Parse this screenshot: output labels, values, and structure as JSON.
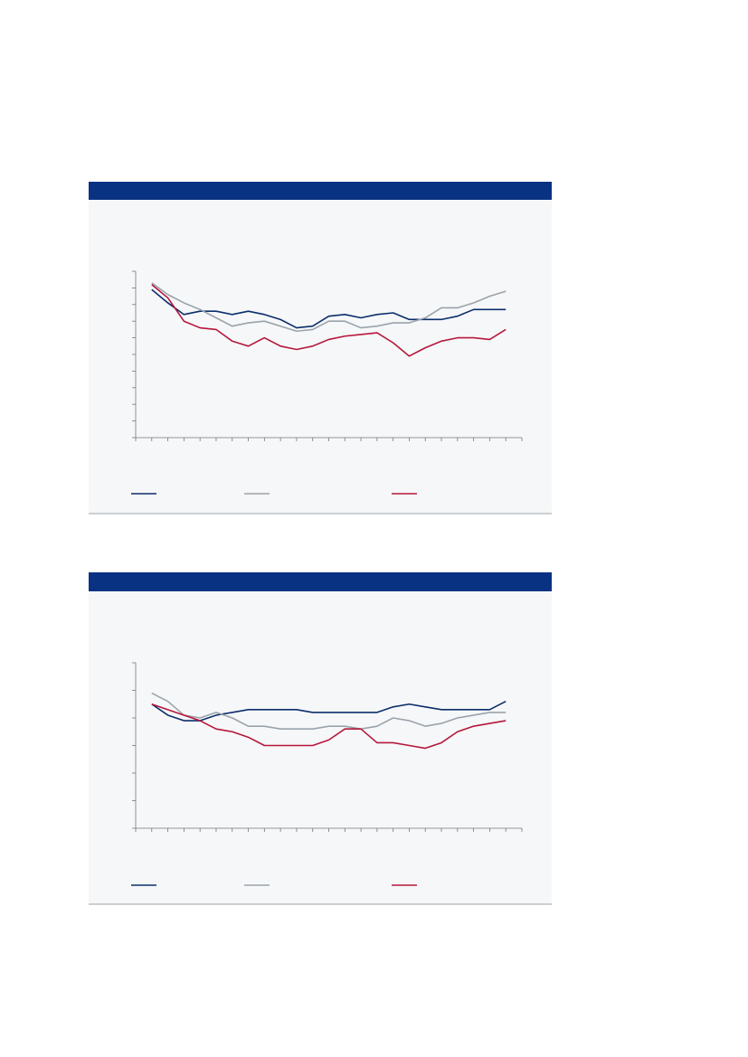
{
  "chart_data": [
    {
      "type": "line",
      "x": [
        1,
        2,
        3,
        4,
        5,
        6,
        7,
        8,
        9,
        10,
        11,
        12,
        13,
        14,
        15,
        16,
        17,
        18,
        19,
        20,
        21,
        22,
        23
      ],
      "xlim": [
        0,
        24
      ],
      "xticks": [
        0,
        1,
        2,
        3,
        4,
        5,
        6,
        7,
        8,
        9,
        10,
        11,
        12,
        13,
        14,
        15,
        16,
        17,
        18,
        19,
        20,
        21,
        22,
        23,
        24
      ],
      "ylim": [
        0,
        100
      ],
      "yticks": [
        0,
        10,
        20,
        30,
        40,
        50,
        60,
        70,
        80,
        90,
        100
      ],
      "series": [
        {
          "color": "#0b2e6b",
          "values": [
            89,
            81,
            74,
            76,
            76,
            74,
            76,
            74,
            71,
            66,
            67,
            73,
            74,
            72,
            74,
            75,
            71,
            71,
            71,
            73,
            77,
            77,
            77
          ]
        },
        {
          "color": "#9aa3ab",
          "values": [
            93,
            86,
            81,
            77,
            72,
            67,
            69,
            70,
            67,
            64,
            65,
            70,
            70,
            66,
            67,
            69,
            69,
            72,
            78,
            78,
            81,
            85,
            88
          ]
        },
        {
          "color": "#b5173c",
          "values": [
            92,
            84,
            70,
            66,
            65,
            58,
            55,
            60,
            55,
            53,
            55,
            59,
            61,
            62,
            63,
            57,
            49,
            54,
            58,
            60,
            60,
            59,
            65
          ]
        }
      ]
    },
    {
      "type": "line",
      "x": [
        1,
        2,
        3,
        4,
        5,
        6,
        7,
        8,
        9,
        10,
        11,
        12,
        13,
        14,
        15,
        16,
        17,
        18,
        19,
        20,
        21,
        22,
        23
      ],
      "xlim": [
        0,
        24
      ],
      "xticks": [
        0,
        1,
        2,
        3,
        4,
        5,
        6,
        7,
        8,
        9,
        10,
        11,
        12,
        13,
        14,
        15,
        16,
        17,
        18,
        19,
        20,
        21,
        22,
        23,
        24
      ],
      "ylim": [
        0,
        60
      ],
      "yticks": [
        0,
        10,
        20,
        30,
        40,
        50,
        60
      ],
      "series": [
        {
          "color": "#0b2e6b",
          "values": [
            45,
            41,
            39,
            39,
            41,
            42,
            43,
            43,
            43,
            43,
            42,
            42,
            42,
            42,
            42,
            44,
            45,
            44,
            43,
            43,
            43,
            43,
            46
          ]
        },
        {
          "color": "#9aa3ab",
          "values": [
            49,
            46,
            41,
            40,
            42,
            40,
            37,
            37,
            36,
            36,
            36,
            37,
            37,
            36,
            37,
            40,
            39,
            37,
            38,
            40,
            41,
            42,
            42
          ]
        },
        {
          "color": "#b5173c",
          "values": [
            45,
            43,
            41,
            39,
            36,
            35,
            33,
            30,
            30,
            30,
            30,
            32,
            36,
            36,
            31,
            31,
            30,
            29,
            31,
            35,
            37,
            38,
            39
          ]
        }
      ]
    }
  ]
}
